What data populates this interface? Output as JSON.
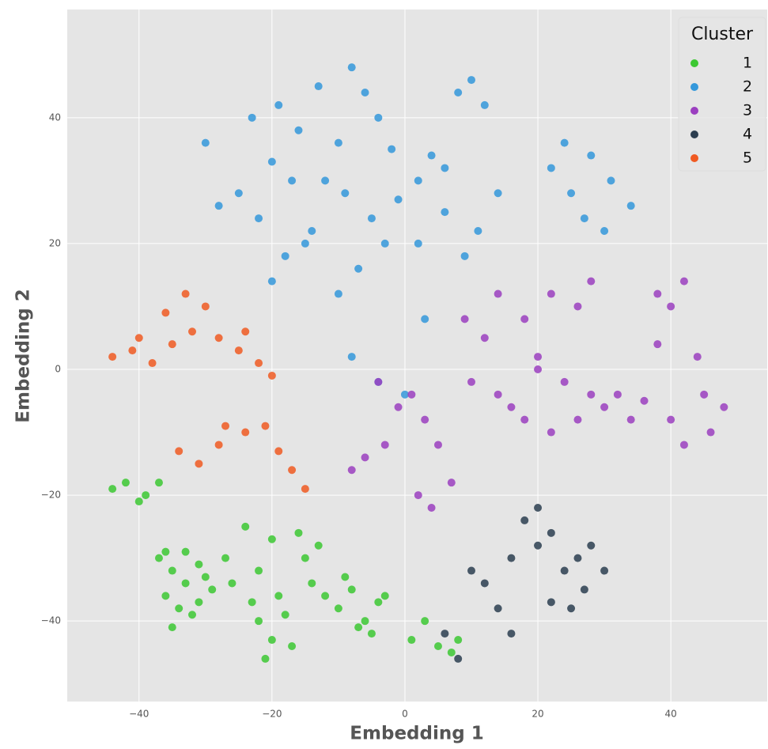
{
  "chart_data": {
    "type": "scatter",
    "xlabel": "Embedding 1",
    "ylabel": "Embedding 2",
    "xlim": [
      -50.8,
      54.5
    ],
    "ylim": [
      -52.8,
      57.2
    ],
    "xticks": [
      {
        "value": -40,
        "label": "−40"
      },
      {
        "value": -20,
        "label": "−20"
      },
      0,
      20,
      40
    ],
    "yticks": [
      {
        "value": -40,
        "label": "−40"
      },
      {
        "value": -20,
        "label": "−20"
      },
      0,
      20,
      40
    ],
    "grid": true,
    "legend": "upper right",
    "legend_title": "Cluster",
    "series": [
      {
        "name": "1",
        "color": "#3cc832",
        "x": [
          -44,
          -42,
          -39,
          -37,
          -35,
          -33,
          -31,
          -29,
          -36,
          -34,
          -32,
          -30,
          -35,
          -33,
          -37,
          -31,
          -27,
          -22,
          -20,
          -18,
          -21,
          -19,
          -23,
          -17,
          -24,
          -20,
          -16,
          -14,
          -12,
          -10,
          -9,
          -13,
          -7,
          -5,
          -8,
          -6,
          -4,
          1,
          3,
          5,
          7,
          8,
          -26,
          -15,
          -3,
          -22,
          -40,
          -36
        ],
        "y": [
          -19,
          -18,
          -20,
          -18,
          -32,
          -29,
          -31,
          -35,
          -36,
          -38,
          -39,
          -33,
          -41,
          -34,
          -30,
          -37,
          -30,
          -40,
          -43,
          -39,
          -46,
          -36,
          -37,
          -44,
          -25,
          -27,
          -26,
          -34,
          -36,
          -38,
          -33,
          -28,
          -41,
          -42,
          -35,
          -40,
          -37,
          -43,
          -40,
          -44,
          -45,
          -43,
          -34,
          -30,
          -36,
          -32,
          -21,
          -29
        ]
      },
      {
        "name": "2",
        "color": "#3498db",
        "x": [
          -28,
          -25,
          -22,
          -30,
          -19,
          -16,
          -13,
          -20,
          -8,
          -6,
          -10,
          -12,
          -4,
          -2,
          2,
          4,
          6,
          8,
          10,
          12,
          11,
          9,
          6,
          2,
          -1,
          -5,
          -9,
          -14,
          -18,
          -20,
          -17,
          -10,
          -7,
          -3,
          -8,
          -4,
          0,
          3,
          22,
          25,
          28,
          31,
          34,
          27,
          24,
          30,
          -15,
          -23,
          14
        ],
        "y": [
          26,
          28,
          24,
          36,
          42,
          38,
          45,
          33,
          48,
          44,
          36,
          30,
          40,
          35,
          30,
          34,
          32,
          44,
          46,
          42,
          22,
          18,
          25,
          20,
          27,
          24,
          28,
          22,
          18,
          14,
          30,
          12,
          16,
          20,
          2,
          -2,
          -4,
          8,
          32,
          28,
          34,
          30,
          26,
          24,
          36,
          22,
          20,
          40,
          28
        ]
      },
      {
        "name": "3",
        "color": "#9b3fc0",
        "x": [
          14,
          18,
          22,
          26,
          28,
          38,
          40,
          42,
          45,
          48,
          44,
          40,
          36,
          42,
          46,
          24,
          20,
          26,
          28,
          18,
          16,
          22,
          3,
          5,
          1,
          -4,
          -6,
          -8,
          -3,
          2,
          4,
          7,
          10,
          12,
          9,
          14,
          32,
          34,
          30,
          38,
          -1,
          20
        ],
        "y": [
          12,
          8,
          12,
          10,
          14,
          12,
          10,
          14,
          -4,
          -6,
          2,
          -8,
          -5,
          -12,
          -10,
          -2,
          0,
          -8,
          -4,
          -8,
          -6,
          -10,
          -8,
          -12,
          -4,
          -2,
          -14,
          -16,
          -12,
          -20,
          -22,
          -18,
          -2,
          5,
          8,
          -4,
          -4,
          -8,
          -6,
          4,
          -6,
          2
        ]
      },
      {
        "name": "4",
        "color": "#2c3e50",
        "x": [
          18,
          20,
          22,
          16,
          24,
          26,
          28,
          30,
          22,
          14,
          12,
          16,
          10,
          8,
          6,
          20,
          27,
          25
        ],
        "y": [
          -24,
          -28,
          -26,
          -30,
          -32,
          -30,
          -28,
          -32,
          -37,
          -38,
          -34,
          -42,
          -32,
          -46,
          -42,
          -22,
          -35,
          -38
        ]
      },
      {
        "name": "5",
        "color": "#f05a22",
        "x": [
          -44,
          -41,
          -38,
          -35,
          -32,
          -30,
          -36,
          -33,
          -28,
          -25,
          -22,
          -20,
          -24,
          -34,
          -31,
          -28,
          -24,
          -21,
          -19,
          -17,
          -15,
          -27,
          -40
        ],
        "y": [
          2,
          3,
          1,
          4,
          6,
          10,
          9,
          12,
          5,
          3,
          1,
          -1,
          6,
          -13,
          -15,
          -12,
          -10,
          -9,
          -13,
          -16,
          -19,
          -9,
          5
        ]
      }
    ]
  }
}
